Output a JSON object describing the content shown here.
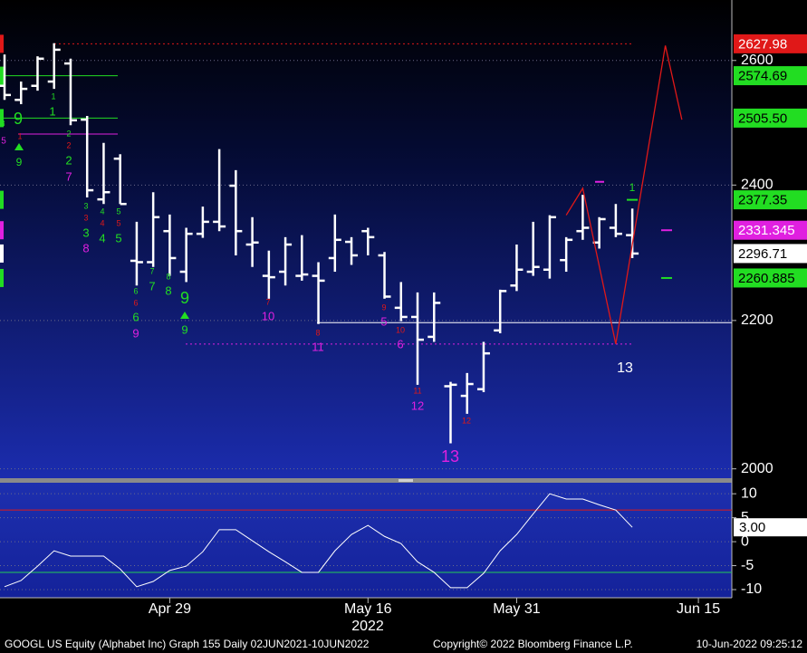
{
  "chart_data": [
    {
      "type": "ohlc",
      "log": true,
      "ylim": [
        1988,
        2703
      ],
      "yticks": [
        2000,
        2200,
        2400,
        2600
      ],
      "grid": true,
      "bar_color": "#ffffff",
      "categories": [
        null,
        null,
        null,
        null,
        null,
        null,
        null,
        null,
        null,
        null,
        "Apr 29",
        null,
        null,
        null,
        null,
        null,
        null,
        null,
        null,
        null,
        null,
        null,
        "May 16",
        null,
        null,
        null,
        null,
        null,
        null,
        null,
        null,
        "May 31",
        null,
        null,
        null,
        null,
        null,
        null,
        null,
        null,
        null,
        null,
        "Jun 15",
        null
      ],
      "year_label": "2022",
      "open": [
        2558,
        2535,
        2558,
        2565,
        2595,
        2503,
        2378,
        2441,
        2286,
        2284,
        2330,
        2270,
        2326,
        2344,
        2399,
        2310,
        2264,
        2270,
        2264,
        2264,
        2290,
        2314,
        2330,
        2294,
        2218,
        2205,
        2177,
        2109,
        2096,
        2105,
        2186,
        2250,
        2270,
        2273,
        2287,
        2330,
        2313,
        2335,
        2324,
        null,
        null,
        null,
        null,
        null
      ],
      "high": [
        2610,
        2565,
        2607,
        2629,
        2603,
        2509,
        2466,
        2448,
        2344,
        2389,
        2355,
        2335,
        2367,
        2456,
        2423,
        2351,
        2301,
        2321,
        2324,
        2284,
        2355,
        2321,
        2335,
        2299,
        2255,
        2240,
        2240,
        2115,
        2127,
        2170,
        2244,
        2310,
        2344,
        2354,
        2321,
        2385,
        2351,
        2371,
        2364,
        null,
        null,
        null,
        null,
        null
      ],
      "low": [
        2535,
        2528,
        2550,
        2553,
        2494,
        2381,
        2371,
        2371,
        2250,
        2277,
        2264,
        2255,
        2320,
        2330,
        2294,
        2277,
        2231,
        2250,
        2257,
        2195,
        2270,
        2280,
        2294,
        2231,
        2199,
        2111,
        2170,
        2033,
        2072,
        2101,
        2182,
        2242,
        2264,
        2260,
        2270,
        2317,
        2304,
        2321,
        2290,
        null,
        null,
        null,
        null,
        null
      ],
      "close": [
        2543,
        2553,
        2603,
        2618,
        2502,
        2392,
        2389,
        2371,
        2284,
        2351,
        2290,
        2326,
        2344,
        2337,
        2330,
        2313,
        2262,
        2310,
        2266,
        2257,
        2317,
        2294,
        2321,
        2234,
        2205,
        2173,
        2225,
        2111,
        2112,
        2154,
        2242,
        2273,
        2277,
        2351,
        2317,
        2335,
        2348,
        2326,
        2296.71,
        null,
        null,
        null,
        null,
        null
      ],
      "levels": [
        {
          "value": 2627.98,
          "label": "2627.98",
          "color": "#e01818",
          "text_color": "#ffffff"
        },
        {
          "value": 2574.69,
          "label": "2574.69",
          "color": "#22dd22",
          "text_color": "#000000"
        },
        {
          "value": 2505.5,
          "label": "2505.50",
          "color": "#22dd22",
          "text_color": "#000000"
        },
        {
          "value": 2377.35,
          "label": "2377.35",
          "color": "#22dd22",
          "text_color": "#000000"
        },
        {
          "value": 2331.345,
          "label": "2331.345",
          "color": "#e020e0",
          "text_color": "#ffffff"
        },
        {
          "value": 2296.71,
          "label": "2296.71",
          "color": "#ffffff",
          "text_color": "#000000"
        },
        {
          "value": 2260.885,
          "label": "2260.885",
          "color": "#22dd22",
          "text_color": "#000000"
        }
      ],
      "reference_lines": [
        {
          "value": 2480,
          "color": "#e020e0"
        },
        {
          "value": 2197,
          "color": "#ffffff"
        },
        {
          "value": 2167,
          "color": "#e020e0"
        },
        {
          "value": 2405,
          "color": "#e020e0"
        }
      ],
      "projection": {
        "color": "#e01818",
        "x": [
          34,
          35,
          37,
          40,
          41
        ],
        "values": [
          2354,
          2395,
          2167,
          2625,
          2503
        ]
      },
      "annotations": [
        {
          "text": "9",
          "color": "#22dd22"
        },
        {
          "text": "8",
          "color": "#22dd22"
        },
        {
          "text": "5",
          "color": "#e020e0"
        },
        {
          "text": "1",
          "color": "#e01818"
        },
        {
          "text": "9",
          "color": "#22dd22"
        },
        {
          "text": "1",
          "color": "#22dd22"
        },
        {
          "text": "1",
          "color": "#22dd22"
        },
        {
          "text": "2",
          "color": "#22dd22"
        },
        {
          "text": "2",
          "color": "#e01818"
        },
        {
          "text": "2",
          "color": "#22dd22"
        },
        {
          "text": "7",
          "color": "#e020e0"
        },
        {
          "text": "3",
          "color": "#22dd22"
        },
        {
          "text": "3",
          "color": "#e01818"
        },
        {
          "text": "3",
          "color": "#22dd22"
        },
        {
          "text": "8",
          "color": "#e020e0"
        },
        {
          "text": "4",
          "color": "#22dd22"
        },
        {
          "text": "4",
          "color": "#e01818"
        },
        {
          "text": "4",
          "color": "#22dd22"
        },
        {
          "text": "5",
          "color": "#22dd22"
        },
        {
          "text": "5",
          "color": "#e01818"
        },
        {
          "text": "5",
          "color": "#22dd22"
        },
        {
          "text": "6",
          "color": "#22dd22"
        },
        {
          "text": "6",
          "color": "#e01818"
        },
        {
          "text": "6",
          "color": "#22dd22"
        },
        {
          "text": "9",
          "color": "#e020e0"
        },
        {
          "text": "7",
          "color": "#22dd22"
        },
        {
          "text": "7",
          "color": "#22dd22"
        },
        {
          "text": "8",
          "color": "#22dd22"
        },
        {
          "text": "8",
          "color": "#22dd22"
        },
        {
          "text": "9",
          "color": "#22dd22"
        },
        {
          "text": "9",
          "color": "#22dd22"
        },
        {
          "text": "7",
          "color": "#e01818"
        },
        {
          "text": "10",
          "color": "#e020e0"
        },
        {
          "text": "8",
          "color": "#e01818"
        },
        {
          "text": "11",
          "color": "#e020e0"
        },
        {
          "text": "9",
          "color": "#e01818"
        },
        {
          "text": "5",
          "color": "#e020e0"
        },
        {
          "text": "10",
          "color": "#e01818"
        },
        {
          "text": "6",
          "color": "#e020e0"
        },
        {
          "text": "11",
          "color": "#e01818"
        },
        {
          "text": "12",
          "color": "#e020e0"
        },
        {
          "text": "12",
          "color": "#e01818"
        },
        {
          "text": "13",
          "color": "#e020e0"
        },
        {
          "text": "1",
          "color": "#22dd22"
        },
        {
          "text": "13",
          "color": "#ffffff"
        }
      ]
    },
    {
      "type": "line",
      "ylim": [
        -11.7,
        12.3
      ],
      "yticks": [
        10,
        5,
        0,
        -5,
        -10
      ],
      "grid": true,
      "series": [
        {
          "color": "#ffffff",
          "values": [
            -9.4,
            -8.1,
            -5.1,
            -1.9,
            -3.0,
            -3.0,
            -3.0,
            -5.7,
            -9.4,
            -8.3,
            -6.0,
            -5.1,
            -2.1,
            2.5,
            2.5,
            0.2,
            -2.1,
            -4.2,
            -6.4,
            -6.4,
            -1.9,
            1.5,
            3.4,
            1.1,
            -0.4,
            -4.2,
            -6.4,
            -9.6,
            -9.6,
            -6.6,
            -1.9,
            1.5,
            5.8,
            10.0,
            8.9,
            8.9,
            7.7,
            6.6,
            3,
            null,
            null,
            null,
            null,
            null
          ]
        }
      ],
      "reference_lines": [
        {
          "value": 6.6,
          "color": "#e01818"
        },
        {
          "value": -6.4,
          "color": "#22cc55"
        }
      ],
      "current": {
        "value": 3,
        "label": "3.00"
      }
    }
  ],
  "footer": {
    "left": "GOOGL US Equity (Alphabet Inc) Graph 155  Daily 02JUN2021-10JUN2022",
    "center": "Copyright© 2022 Bloomberg Finance L.P.",
    "right": "10-Jun-2022 09:25:12"
  }
}
